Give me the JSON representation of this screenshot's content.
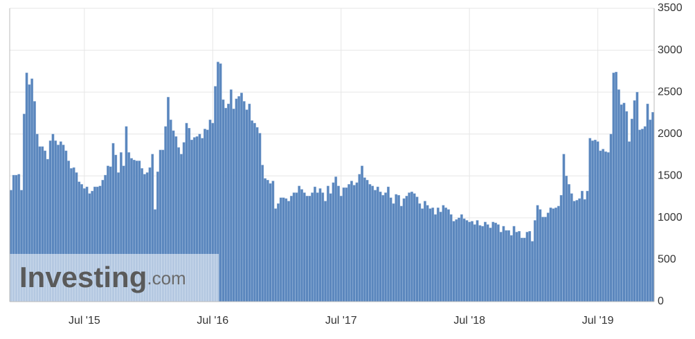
{
  "chart_data": {
    "type": "bar",
    "categories": [
      null,
      null,
      null,
      null,
      null,
      null,
      null,
      null,
      null,
      null,
      null,
      null,
      null,
      null,
      null,
      null,
      null,
      null,
      null,
      null,
      null,
      null,
      null,
      null,
      null,
      null,
      null,
      null,
      "Jul '15",
      null,
      null,
      null,
      null,
      null,
      null,
      null,
      null,
      null,
      null,
      null,
      null,
      null,
      null,
      null,
      null,
      null,
      null,
      null,
      null,
      null,
      null,
      null,
      null,
      null,
      null,
      null,
      null,
      null,
      null,
      null,
      null,
      null,
      null,
      null,
      null,
      null,
      null,
      null,
      null,
      null,
      null,
      null,
      null,
      null,
      null,
      null,
      null,
      "Jul '16",
      null,
      null,
      null,
      null,
      null,
      null,
      null,
      null,
      null,
      null,
      null,
      null,
      null,
      null,
      null,
      null,
      null,
      null,
      null,
      null,
      null,
      null,
      null,
      null,
      null,
      null,
      null,
      null,
      null,
      null,
      null,
      null,
      null,
      null,
      null,
      null,
      null,
      null,
      null,
      null,
      null,
      null,
      null,
      null,
      null,
      null,
      null,
      null,
      "Jul '17",
      null,
      null,
      null,
      null,
      null,
      null,
      null,
      null,
      null,
      null,
      null,
      null,
      null,
      null,
      null,
      null,
      null,
      null,
      null,
      null,
      null,
      null,
      null,
      null,
      null,
      null,
      null,
      null,
      null,
      null,
      null,
      null,
      null,
      null,
      null,
      null,
      null,
      null,
      null,
      null,
      null,
      null,
      null,
      null,
      null,
      null,
      null,
      null,
      "Jul '18",
      null,
      null,
      null,
      null,
      null,
      null,
      null,
      null,
      null,
      null,
      null,
      null,
      null,
      null,
      null,
      null,
      null,
      null,
      null,
      null,
      null,
      null,
      null,
      null,
      null,
      null,
      null,
      null,
      null,
      null,
      null,
      null,
      null,
      null,
      null,
      null,
      null,
      null,
      null,
      null,
      null,
      null,
      null,
      null,
      null,
      null,
      null,
      null,
      "Jul '19",
      null,
      null,
      null,
      null,
      null,
      null,
      null,
      null,
      null,
      null,
      null,
      null,
      null,
      null,
      null,
      null,
      null,
      null,
      null,
      null,
      null
    ],
    "values": [
      1330,
      1510,
      1510,
      1520,
      1330,
      2240,
      2730,
      2590,
      2660,
      2390,
      2000,
      1850,
      1850,
      1800,
      1700,
      1920,
      2000,
      1920,
      1870,
      1910,
      1870,
      1800,
      1680,
      1590,
      1600,
      1540,
      1430,
      1400,
      1350,
      1370,
      1290,
      1320,
      1370,
      1370,
      1380,
      1450,
      1510,
      1620,
      1610,
      1890,
      1750,
      1540,
      1780,
      1620,
      2090,
      1780,
      1710,
      1690,
      1680,
      1680,
      1590,
      1520,
      1540,
      1600,
      1760,
      1100,
      1550,
      1810,
      1810,
      2090,
      2440,
      2170,
      2040,
      1970,
      1840,
      1760,
      1900,
      2130,
      2070,
      1930,
      1960,
      1970,
      2000,
      1950,
      2060,
      2050,
      2170,
      2130,
      2570,
      2860,
      2840,
      2410,
      2310,
      2360,
      2530,
      2300,
      2420,
      2450,
      2490,
      2390,
      2290,
      2360,
      2160,
      2130,
      2080,
      2010,
      1630,
      1470,
      1450,
      1410,
      1440,
      1110,
      1170,
      1240,
      1240,
      1230,
      1200,
      1260,
      1300,
      1300,
      1380,
      1340,
      1300,
      1260,
      1260,
      1300,
      1370,
      1300,
      1350,
      1300,
      1200,
      1380,
      1290,
      1420,
      1490,
      1380,
      1260,
      1360,
      1360,
      1400,
      1440,
      1390,
      1420,
      1520,
      1620,
      1480,
      1450,
      1400,
      1380,
      1330,
      1370,
      1310,
      1270,
      1300,
      1370,
      1240,
      1170,
      1280,
      1270,
      1140,
      1230,
      1260,
      1300,
      1310,
      1290,
      1250,
      1170,
      1110,
      1200,
      1150,
      1110,
      1120,
      1040,
      1120,
      1070,
      1150,
      1120,
      1100,
      1040,
      960,
      980,
      1000,
      1040,
      990,
      970,
      950,
      960,
      920,
      970,
      910,
      900,
      950,
      920,
      880,
      950,
      940,
      920,
      830,
      900,
      850,
      850,
      790,
      900,
      830,
      840,
      760,
      760,
      830,
      840,
      720,
      970,
      1150,
      1100,
      1010,
      1010,
      1060,
      1120,
      1110,
      1120,
      1140,
      1270,
      1760,
      1500,
      1400,
      1290,
      1200,
      1210,
      1230,
      1320,
      1220,
      1320,
      1950,
      1920,
      1930,
      1910,
      1800,
      1820,
      1790,
      1780,
      2000,
      2730,
      2740,
      2530,
      2350,
      2370,
      2270,
      1910,
      2180,
      2400,
      2500,
      2050,
      2060,
      2090,
      2360,
      2170,
      2260
    ],
    "color": "#5a86bd",
    "ylim": [
      0,
      3500
    ],
    "yticks": [
      0,
      500,
      1000,
      1500,
      2000,
      2500,
      3000,
      3500
    ],
    "grid": true,
    "watermark": {
      "brand": "Investing",
      "suffix": ".com"
    }
  }
}
